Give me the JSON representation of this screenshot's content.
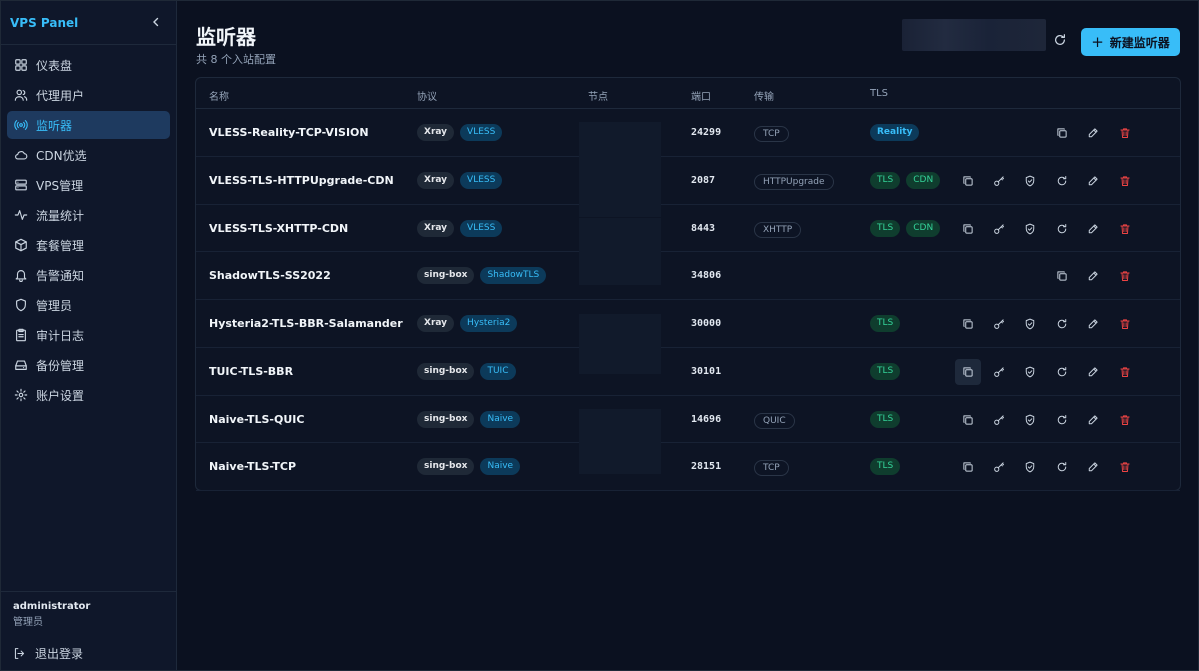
{
  "sidebar": {
    "brand": "VPS Panel",
    "items": [
      {
        "label": "仪表盘",
        "icon": "grid-icon"
      },
      {
        "label": "代理用户",
        "icon": "users-icon"
      },
      {
        "label": "监听器",
        "icon": "radio-icon",
        "active": true
      },
      {
        "label": "CDN优选",
        "icon": "cloud-icon"
      },
      {
        "label": "VPS管理",
        "icon": "server-icon"
      },
      {
        "label": "流量统计",
        "icon": "activity-icon"
      },
      {
        "label": "套餐管理",
        "icon": "package-icon"
      },
      {
        "label": "告警通知",
        "icon": "bell-icon"
      },
      {
        "label": "管理员",
        "icon": "shield-icon"
      },
      {
        "label": "审计日志",
        "icon": "clipboard-icon"
      },
      {
        "label": "备份管理",
        "icon": "hard-drive-icon"
      },
      {
        "label": "账户设置",
        "icon": "gear-icon"
      }
    ],
    "user": {
      "name": "administrator",
      "role": "管理员"
    },
    "logout_label": "退出登录"
  },
  "header": {
    "title": "监听器",
    "subtitle": "共 8 个入站配置",
    "new_button": "新建监听器"
  },
  "table": {
    "columns": {
      "name": "名称",
      "protocol": "协议",
      "node": "节点",
      "port": "端口",
      "transport": "传输",
      "tls": "TLS"
    },
    "rows": [
      {
        "name": "VLESS-Reality-TCP-VISION",
        "core": "Xray",
        "proto": "VLESS",
        "port": "24299",
        "transport": "TCP",
        "tls": [
          "Reality"
        ],
        "full_actions": false
      },
      {
        "name": "VLESS-TLS-HTTPUpgrade-CDN",
        "core": "Xray",
        "proto": "VLESS",
        "port": "2087",
        "transport": "HTTPUpgrade",
        "tls": [
          "TLS",
          "CDN"
        ],
        "full_actions": true
      },
      {
        "name": "VLESS-TLS-XHTTP-CDN",
        "core": "Xray",
        "proto": "VLESS",
        "port": "8443",
        "transport": "XHTTP",
        "tls": [
          "TLS",
          "CDN"
        ],
        "full_actions": true
      },
      {
        "name": "ShadowTLS-SS2022",
        "core": "sing-box",
        "proto": "ShadowTLS",
        "port": "34806",
        "transport": "",
        "tls": [],
        "full_actions": false
      },
      {
        "name": "Hysteria2-TLS-BBR-Salamander",
        "core": "Xray",
        "proto": "Hysteria2",
        "port": "30000",
        "transport": "",
        "tls": [
          "TLS"
        ],
        "full_actions": true
      },
      {
        "name": "TUIC-TLS-BBR",
        "core": "sing-box",
        "proto": "TUIC",
        "port": "30101",
        "transport": "",
        "tls": [
          "TLS"
        ],
        "full_actions": true
      },
      {
        "name": "Naive-TLS-QUIC",
        "core": "sing-box",
        "proto": "Naive",
        "port": "14696",
        "transport": "QUIC",
        "tls": [
          "TLS"
        ],
        "full_actions": true
      },
      {
        "name": "Naive-TLS-TCP",
        "core": "sing-box",
        "proto": "Naive",
        "port": "28151",
        "transport": "TCP",
        "tls": [
          "TLS"
        ],
        "full_actions": true
      }
    ]
  },
  "colors": {
    "accent": "#38bdf8",
    "danger": "#ef4444",
    "success": "#34d399",
    "background": "#0b1120"
  }
}
